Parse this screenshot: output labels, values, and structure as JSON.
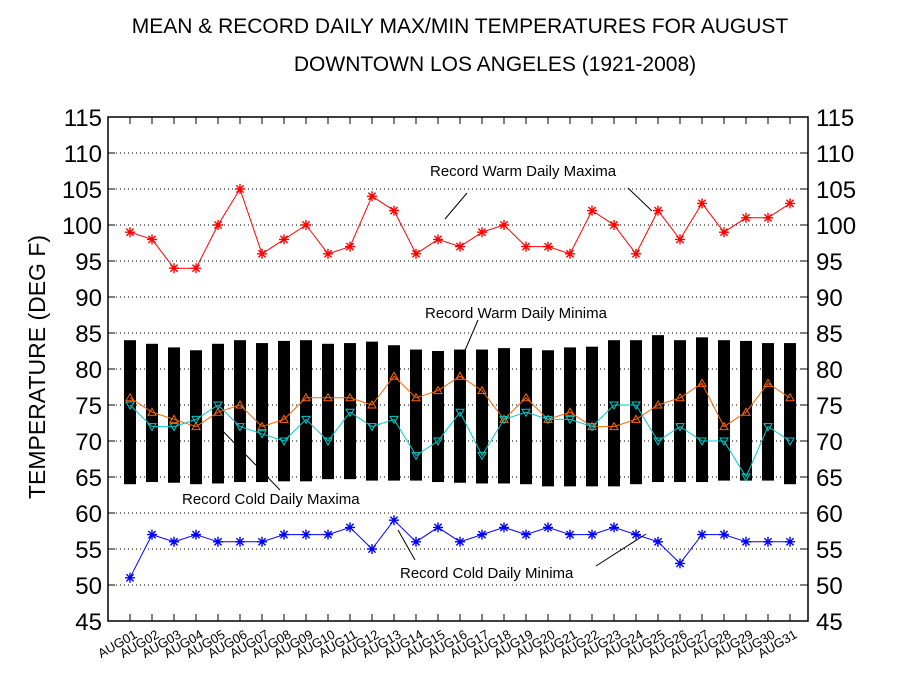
{
  "chart_data": {
    "type": "line",
    "title": "MEAN & RECORD DAILY MAX/MIN TEMPERATURES FOR AUGUST",
    "subtitle": "DOWNTOWN LOS ANGELES (1921-2008)",
    "xlabel": "",
    "ylabel": "TEMPERATURE (DEG F)",
    "ylim": [
      45,
      115
    ],
    "yticks": [
      45,
      50,
      55,
      60,
      65,
      70,
      75,
      80,
      85,
      90,
      95,
      100,
      105,
      110,
      115
    ],
    "grid": true,
    "categories": [
      "AUG01",
      "AUG02",
      "AUG03",
      "AUG04",
      "AUG05",
      "AUG06",
      "AUG07",
      "AUG08",
      "AUG09",
      "AUG10",
      "AUG11",
      "AUG12",
      "AUG13",
      "AUG14",
      "AUG15",
      "AUG16",
      "AUG17",
      "AUG18",
      "AUG19",
      "AUG20",
      "AUG21",
      "AUG22",
      "AUG23",
      "AUG24",
      "AUG25",
      "AUG26",
      "AUG27",
      "AUG28",
      "AUG29",
      "AUG30",
      "AUG31"
    ],
    "mean_range": {
      "max": [
        84,
        83.5,
        83,
        82.6,
        83.5,
        84,
        83.6,
        83.9,
        84,
        83.5,
        83.6,
        83.8,
        83.3,
        82.7,
        82.5,
        82.7,
        82.7,
        82.9,
        82.9,
        82.6,
        83,
        83.1,
        84,
        84,
        84.7,
        84,
        84.4,
        84,
        83.9,
        83.6,
        83.6
      ],
      "min": [
        64,
        64.3,
        64.2,
        64,
        64.1,
        64.3,
        64.3,
        64.4,
        64.4,
        64.7,
        64.7,
        64.5,
        64.5,
        64.5,
        64.3,
        64.2,
        64.1,
        64.1,
        64,
        63.7,
        63.7,
        63.7,
        63.7,
        64,
        64.3,
        64.3,
        64.3,
        64.5,
        64.5,
        64.5,
        64
      ]
    },
    "series": [
      {
        "name": "Record Warm Daily Maxima",
        "color": "#ff0000",
        "marker": "asterisk",
        "values": [
          99,
          98,
          94,
          94,
          100,
          105,
          96,
          98,
          100,
          96,
          97,
          104,
          102,
          96,
          98,
          97,
          99,
          100,
          97,
          97,
          96,
          102,
          100,
          96,
          102,
          98,
          103,
          99,
          101,
          101,
          103
        ]
      },
      {
        "name": "Record Warm Daily Minima",
        "color": "#ff6600",
        "marker": "triangle-up",
        "values": [
          76,
          74,
          73,
          72,
          74,
          75,
          72,
          73,
          76,
          76,
          76,
          75,
          79,
          76,
          77,
          79,
          77,
          73,
          76,
          73,
          74,
          72,
          72,
          73,
          75,
          76,
          78,
          72,
          74,
          78,
          76
        ]
      },
      {
        "name": "Record Cold Daily Maxima",
        "color": "#00cccc",
        "marker": "triangle-down",
        "values": [
          75,
          72,
          72,
          73,
          75,
          72,
          71,
          70,
          73,
          70,
          74,
          72,
          73,
          68,
          70,
          74,
          68,
          73,
          74,
          73,
          73,
          72,
          75,
          75,
          70,
          72,
          70,
          70,
          65,
          72,
          70
        ]
      },
      {
        "name": "Record Cold Daily Minima",
        "color": "#0000ff",
        "marker": "asterisk",
        "values": [
          51,
          57,
          56,
          57,
          56,
          56,
          56,
          57,
          57,
          57,
          58,
          55,
          59,
          56,
          58,
          56,
          57,
          58,
          57,
          58,
          57,
          57,
          58,
          57,
          56,
          53,
          57,
          57,
          56,
          56,
          56
        ]
      }
    ],
    "annotations": [
      {
        "text": "Record Warm Daily Maxima",
        "series": 0
      },
      {
        "text": "Record Warm Daily Minima",
        "series": 1
      },
      {
        "text": "Record Cold Daily Maxima",
        "series": 2
      },
      {
        "text": "Record Cold Daily Minima",
        "series": 3
      }
    ]
  }
}
